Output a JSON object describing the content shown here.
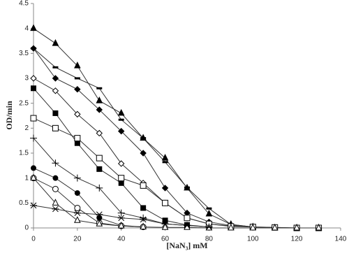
{
  "chart_data": {
    "type": "line",
    "x_label": "[NaN₃] mM",
    "y_label": "OD/min",
    "x": [
      0,
      10,
      20,
      30,
      40,
      50,
      60,
      70,
      80,
      90,
      100,
      110,
      120,
      130
    ],
    "xlim": [
      0,
      140
    ],
    "xticks": [
      0,
      20,
      40,
      60,
      80,
      100,
      120,
      140
    ],
    "ylim": [
      0,
      4.5
    ],
    "yticks": [
      0,
      0.5,
      1,
      1.5,
      2,
      2.5,
      3,
      3.5,
      4,
      4.5
    ],
    "grid": false,
    "series": [
      {
        "marker": "triangle-filled",
        "color": "#333",
        "values": [
          4.0,
          3.7,
          3.25,
          2.55,
          2.3,
          1.8,
          1.4,
          0.8,
          0.28,
          0.07,
          0.02,
          null,
          null,
          null
        ]
      },
      {
        "marker": "dash",
        "color": "#333",
        "values": [
          3.6,
          3.22,
          3.0,
          2.8,
          2.17,
          1.8,
          1.32,
          0.81,
          0.39,
          0.07,
          0.02,
          0.01,
          0,
          0
        ]
      },
      {
        "marker": "diamond-filled",
        "color": "#333",
        "values": [
          3.6,
          3.0,
          2.78,
          2.37,
          1.94,
          1.5,
          0.8,
          0.3,
          0.12,
          0.05,
          0.02,
          null,
          null,
          null
        ]
      },
      {
        "marker": "diamond-open",
        "color": "#333",
        "values": [
          3.0,
          2.75,
          2.28,
          1.9,
          1.29,
          0.9,
          0.5,
          0.2,
          0.08,
          0.04,
          0.02,
          null,
          null,
          null
        ]
      },
      {
        "marker": "square-filled",
        "color": "#333",
        "values": [
          2.8,
          2.3,
          1.7,
          1.18,
          0.9,
          0.4,
          0.15,
          0.06,
          0.02,
          null,
          null,
          null,
          null,
          null
        ]
      },
      {
        "marker": "square-open",
        "color": "#333",
        "values": [
          2.2,
          2.0,
          1.8,
          1.4,
          1.0,
          0.85,
          0.5,
          0.2,
          0.08,
          0.03,
          0.02,
          0.01,
          0,
          0
        ]
      },
      {
        "marker": "plus",
        "color": "#333",
        "values": [
          1.8,
          1.3,
          1.0,
          0.8,
          0.3,
          0.2,
          0.08,
          0.05,
          0.02,
          null,
          null,
          null,
          null,
          null
        ]
      },
      {
        "marker": "circle-filled",
        "color": "#333",
        "values": [
          1.2,
          1.0,
          0.7,
          0.2,
          0.05,
          0.02,
          null,
          null,
          null,
          null,
          null,
          null,
          null,
          null
        ]
      },
      {
        "marker": "circle-open",
        "color": "#333",
        "values": [
          1.0,
          0.78,
          0.4,
          0.1,
          0.04,
          0.02,
          null,
          null,
          null,
          null,
          null,
          null,
          null,
          null
        ]
      },
      {
        "marker": "triangle-open",
        "color": "#333",
        "values": [
          1.0,
          0.5,
          0.15,
          0.08,
          0.04,
          0.02,
          0.01,
          0.01,
          0,
          0,
          0,
          0,
          0,
          0
        ]
      },
      {
        "marker": "star",
        "color": "#333",
        "values": [
          0.45,
          0.38,
          0.3,
          0.27,
          0.2,
          0.17,
          0.08,
          0.05,
          0.02,
          null,
          null,
          null,
          null,
          null
        ]
      }
    ]
  }
}
